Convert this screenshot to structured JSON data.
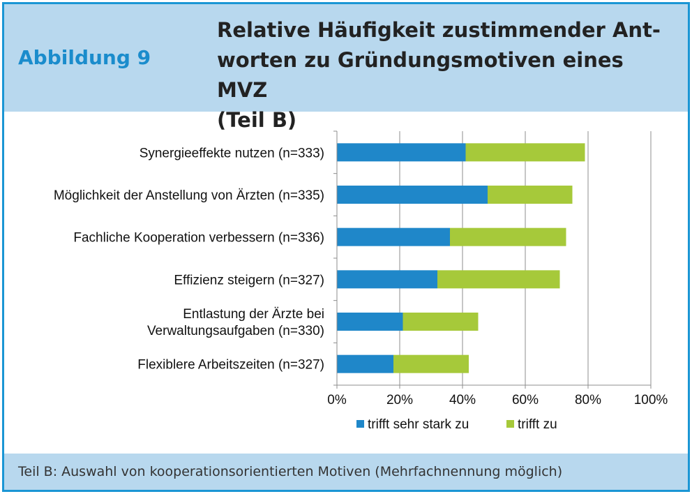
{
  "header": {
    "figure_label": "Abbildung 9",
    "title_lines": [
      "Relative Häufigkeit zustimmender Ant-",
      "worten zu Gründungsmotiven eines MVZ",
      "(Teil B)"
    ]
  },
  "footer": {
    "caption": "Teil B: Auswahl von kooperationsorientierten Motiven (Mehrfachnennung möglich)"
  },
  "chart_data": {
    "type": "bar",
    "orientation": "horizontal",
    "stacked": true,
    "categories": [
      [
        "Synergieeffekte nutzen (n=333)"
      ],
      [
        "Möglichkeit der Anstellung von Ärzten (n=335)"
      ],
      [
        "Fachliche Kooperation verbessern (n=336)"
      ],
      [
        "Effizienz steigern (n=327)"
      ],
      [
        "Entlastung der Ärzte bei",
        "Verwaltungsaufgaben (n=330)"
      ],
      [
        "Flexiblere Arbeitszeiten (n=327)"
      ]
    ],
    "series": [
      {
        "name": "trifft sehr stark zu",
        "color": "#1f87c9",
        "values": [
          41,
          48,
          36,
          32,
          21,
          18
        ]
      },
      {
        "name": "trifft zu",
        "color": "#a6c93a",
        "values": [
          38,
          27,
          37,
          39,
          24,
          24
        ]
      }
    ],
    "xlim": [
      0,
      100
    ],
    "x_ticks": [
      0,
      20,
      40,
      60,
      80,
      100
    ],
    "x_tick_labels": [
      "0%",
      "20%",
      "40%",
      "60%",
      "80%",
      "100%"
    ],
    "grid": "vertical",
    "legend_position": "bottom"
  }
}
